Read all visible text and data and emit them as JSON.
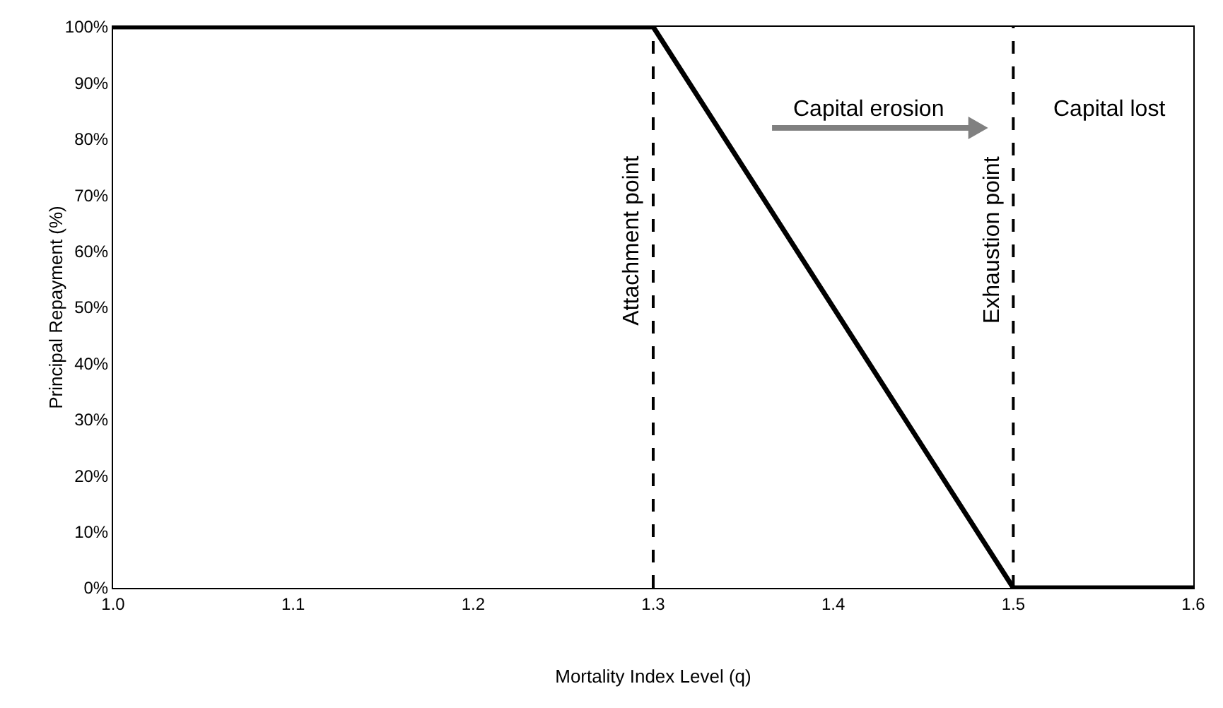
{
  "chart_data": {
    "type": "line",
    "xlabel": "Mortality Index Level (q)",
    "ylabel": "Principal Repayment (%)",
    "x": [
      1.0,
      1.3,
      1.5,
      1.6
    ],
    "series": [
      {
        "color": "#000000",
        "values": [
          100,
          100,
          0,
          0
        ]
      }
    ],
    "xlim": [
      1.0,
      1.6
    ],
    "xticks": [
      {
        "value": 1.0,
        "label": "1.0"
      },
      {
        "value": 1.1,
        "label": "1.1"
      },
      {
        "value": 1.2,
        "label": "1.2"
      },
      {
        "value": 1.3,
        "label": "1.3"
      },
      {
        "value": 1.4,
        "label": "1.4"
      },
      {
        "value": 1.5,
        "label": "1.5"
      },
      {
        "value": 1.6,
        "label": "1.6"
      }
    ],
    "ylim": [
      0,
      100
    ],
    "yticks": [
      {
        "value": 0,
        "label": "0%"
      },
      {
        "value": 10,
        "label": "10%"
      },
      {
        "value": 20,
        "label": "20%"
      },
      {
        "value": 30,
        "label": "30%"
      },
      {
        "value": 40,
        "label": "40%"
      },
      {
        "value": 50,
        "label": "50%"
      },
      {
        "value": 60,
        "label": "60%"
      },
      {
        "value": 70,
        "label": "70%"
      },
      {
        "value": 80,
        "label": "80%"
      },
      {
        "value": 90,
        "label": "90%"
      },
      {
        "value": 100,
        "label": "100%"
      }
    ],
    "ref_lines": [
      {
        "axis": "x",
        "value": 1.3,
        "label": "Attachment point",
        "line_style": "dashed",
        "color": "#000000"
      },
      {
        "axis": "x",
        "value": 1.5,
        "label": "Exhaustion point",
        "line_style": "dashed",
        "color": "#000000"
      }
    ],
    "annotations": [
      "Capital erosion",
      "Capital lost"
    ],
    "grid": false,
    "marker": "none",
    "line_style": "solid"
  }
}
